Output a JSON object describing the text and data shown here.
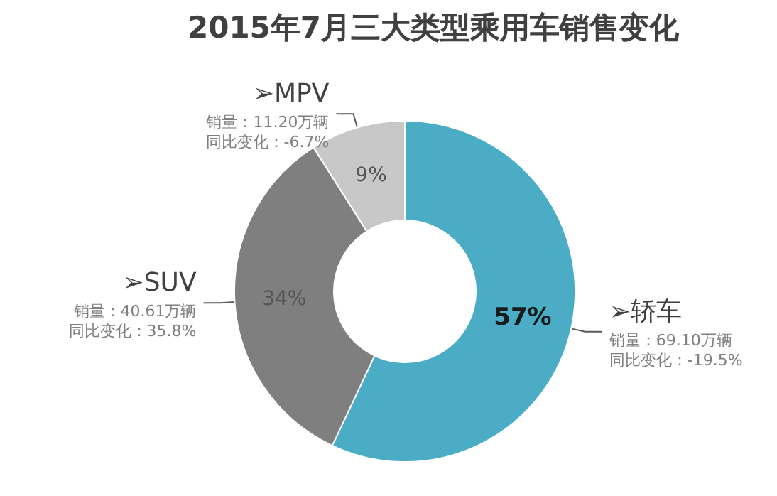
{
  "chart_data": {
    "type": "donut",
    "title": "2015年7月三大类型乘用车销售变化",
    "categories": [
      "➢轿车",
      "➢SUV",
      "➢MPV"
    ],
    "values": [
      57,
      34,
      9
    ],
    "colors": [
      "#4bacc6",
      "#7f7f7f",
      "#c8c8c8"
    ],
    "value_labels": [
      "57%",
      "34%",
      "9%"
    ],
    "annotations": [
      "销量：69.10万辆",
      "同比变化：-19.5%",
      "销量：40.61万辆",
      "同比变化：35.8%",
      "销量：11.20万辆",
      "同比变化：-6.7%"
    ],
    "legend": false
  }
}
